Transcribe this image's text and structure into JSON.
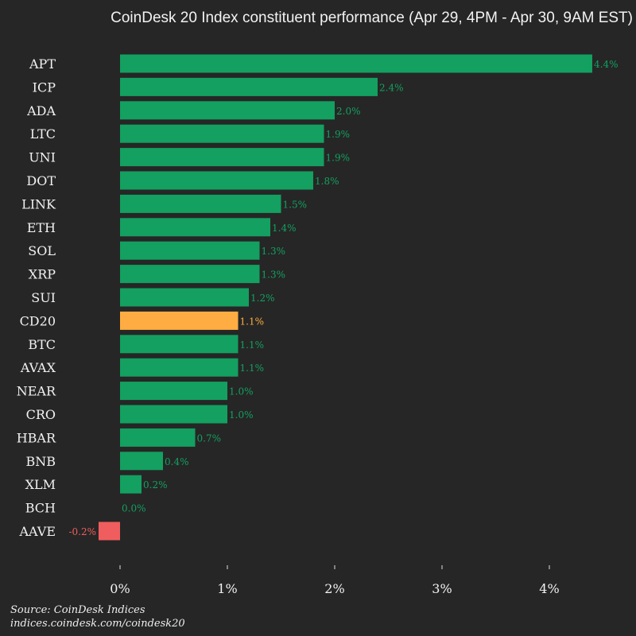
{
  "chart_data": {
    "type": "bar",
    "orientation": "horizontal",
    "title": "CoinDesk 20 Index constituent performance (Apr 29, 4PM - Apr 30, 9AM EST)",
    "categories": [
      "APT",
      "ICP",
      "ADA",
      "LTC",
      "UNI",
      "DOT",
      "LINK",
      "ETH",
      "SOL",
      "XRP",
      "SUI",
      "CD20",
      "BTC",
      "AVAX",
      "NEAR",
      "CRO",
      "HBAR",
      "BNB",
      "XLM",
      "BCH",
      "AAVE"
    ],
    "values": [
      4.4,
      2.4,
      2.0,
      1.9,
      1.9,
      1.8,
      1.5,
      1.4,
      1.3,
      1.3,
      1.2,
      1.1,
      1.1,
      1.1,
      1.0,
      1.0,
      0.7,
      0.4,
      0.2,
      0.0,
      -0.2
    ],
    "value_labels": [
      "4.4%",
      "2.4%",
      "2.0%",
      "1.9%",
      "1.9%",
      "1.8%",
      "1.5%",
      "1.4%",
      "1.3%",
      "1.3%",
      "1.2%",
      "1.1%",
      "1.1%",
      "1.1%",
      "1.0%",
      "1.0%",
      "0.7%",
      "0.4%",
      "0.2%",
      "0.0%",
      "-0.2%"
    ],
    "highlight": "CD20",
    "xticks": [
      0,
      1,
      2,
      3,
      4
    ],
    "xtick_labels": [
      "0%",
      "1%",
      "2%",
      "3%",
      "4%"
    ],
    "xlim": [
      -0.2,
      4.45
    ],
    "grid": false,
    "colors": {
      "positive": "#13a060",
      "negative": "#f05d5e",
      "highlight": "#ffad42",
      "background": "#262626",
      "text": "#f2f2f2"
    }
  },
  "footer": {
    "source": "Source: CoinDesk Indices",
    "url": "indices.coindesk.com/coindesk20"
  }
}
